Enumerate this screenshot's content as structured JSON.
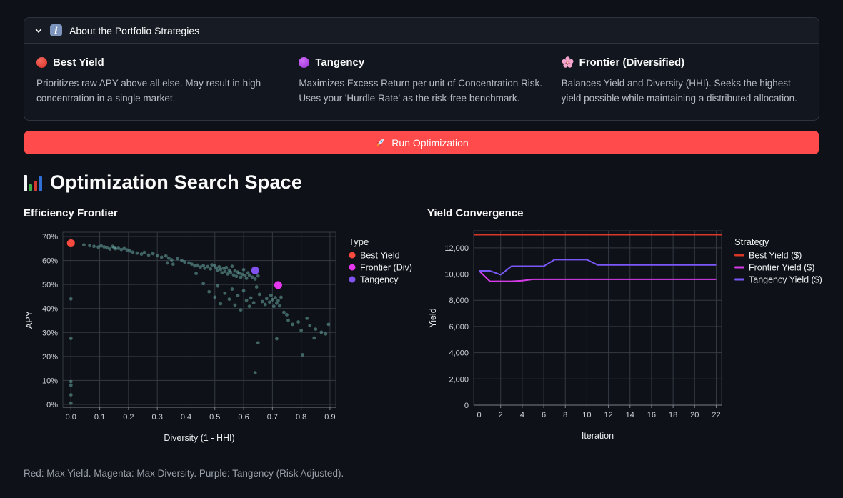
{
  "colors": {
    "page_bg": "#0e1117",
    "panel_bg": "#12161e",
    "panel_header_bg": "#171b24",
    "panel_border": "#2e333d",
    "primary_button": "#FF4B4B",
    "grid": "#343a43",
    "axis_domain": "#79808a",
    "tick_text": "#cfd3d9",
    "axis_title": "#e8eaed",
    "legend_text": "#eef0f2"
  },
  "expander": {
    "title": "About the Portfolio Strategies",
    "icon": "info-icon",
    "state_icon": "chevron-down-icon",
    "columns": [
      {
        "icon": "red-circle",
        "title": "Best Yield",
        "description": "Prioritizes raw APY above all else. May result in high concentration in a single market."
      },
      {
        "icon": "purple-circle",
        "title": "Tangency",
        "description": "Maximizes Excess Return per unit of Concentration Risk. Uses your 'Hurdle Rate' as the risk-free benchmark."
      },
      {
        "icon": "cherry-blossom",
        "title": "Frontier (Diversified)",
        "description": "Balances Yield and Diversity (HHI). Seeks the highest yield possible while maintaining a distributed allocation."
      }
    ]
  },
  "run_button": {
    "label": "Run Optimization",
    "icon": "rocket",
    "color": "#FF4B4B"
  },
  "section_title": "Optimization Search Space",
  "section_icon": "bar-chart",
  "caption": "Red: Max Yield. Magenta: Max Diversity. Purple: Tangency (Risk Adjusted).",
  "chart_data": [
    {
      "type": "scatter",
      "title": "Efficiency Frontier",
      "xlabel": "Diversity (1 - HHI)",
      "ylabel": "APY",
      "xlim": [
        -0.028,
        0.92
      ],
      "ylim": [
        -1.2,
        71.8
      ],
      "xticks": [
        0,
        0.1,
        0.2,
        0.3,
        0.4,
        0.5,
        0.6,
        0.7,
        0.8,
        0.9
      ],
      "yticks": [
        0,
        10,
        20,
        30,
        40,
        50,
        60,
        70
      ],
      "xtick_format": "fixed1",
      "ytick_format": "percent",
      "grid": true,
      "legend_title": "Type",
      "legend_position": "right",
      "legend_symbol": "circle",
      "series": [
        {
          "name": "Candidates",
          "color": "#72B7B2",
          "opacity": 0.5,
          "r": 2.4,
          "legend": false,
          "points": [
            [
              0,
              44
            ],
            [
              0,
              27.5
            ],
            [
              0,
              9.5
            ],
            [
              0,
              8
            ],
            [
              0,
              4
            ],
            [
              0,
              0.5
            ],
            [
              0.045,
              66.5
            ],
            [
              0.065,
              66.2
            ],
            [
              0.08,
              65.9
            ],
            [
              0.095,
              65.6
            ],
            [
              0.105,
              66.1
            ],
            [
              0.115,
              65.7
            ],
            [
              0.125,
              65.3
            ],
            [
              0.135,
              64.8
            ],
            [
              0.145,
              65.9
            ],
            [
              0.15,
              65.4
            ],
            [
              0.155,
              64.9
            ],
            [
              0.165,
              65.1
            ],
            [
              0.175,
              64.6
            ],
            [
              0.185,
              65
            ],
            [
              0.195,
              64.4
            ],
            [
              0.205,
              64
            ],
            [
              0.215,
              63.5
            ],
            [
              0.23,
              63.1
            ],
            [
              0.245,
              62.7
            ],
            [
              0.255,
              63.4
            ],
            [
              0.27,
              62.3
            ],
            [
              0.285,
              62.9
            ],
            [
              0.3,
              62
            ],
            [
              0.315,
              61.4
            ],
            [
              0.33,
              61.9
            ],
            [
              0.335,
              59
            ],
            [
              0.34,
              61
            ],
            [
              0.35,
              60.3
            ],
            [
              0.355,
              58.5
            ],
            [
              0.37,
              60.8
            ],
            [
              0.385,
              60.1
            ],
            [
              0.395,
              59.4
            ],
            [
              0.41,
              59
            ],
            [
              0.42,
              58.5
            ],
            [
              0.43,
              57.8
            ],
            [
              0.435,
              54.6
            ],
            [
              0.44,
              58.1
            ],
            [
              0.45,
              57.3
            ],
            [
              0.46,
              57.9
            ],
            [
              0.465,
              56.8
            ],
            [
              0.475,
              57.5
            ],
            [
              0.485,
              56.5
            ],
            [
              0.49,
              58.2
            ],
            [
              0.5,
              57.8
            ],
            [
              0.505,
              56.9
            ],
            [
              0.51,
              55.9
            ],
            [
              0.515,
              57.4
            ],
            [
              0.52,
              56.3
            ],
            [
              0.525,
              54.9
            ],
            [
              0.53,
              56.8
            ],
            [
              0.535,
              55.5
            ],
            [
              0.54,
              57.1
            ],
            [
              0.545,
              54.4
            ],
            [
              0.55,
              56
            ],
            [
              0.555,
              55.1
            ],
            [
              0.56,
              57.6
            ],
            [
              0.565,
              54
            ],
            [
              0.57,
              55.7
            ],
            [
              0.575,
              53.4
            ],
            [
              0.58,
              55.2
            ],
            [
              0.585,
              54.7
            ],
            [
              0.59,
              53
            ],
            [
              0.595,
              54.2
            ],
            [
              0.6,
              56.2
            ],
            [
              0.605,
              53.7
            ],
            [
              0.61,
              52.6
            ],
            [
              0.615,
              54.9
            ],
            [
              0.62,
              53.9
            ],
            [
              0.63,
              53.1
            ],
            [
              0.64,
              52.3
            ],
            [
              0.65,
              53.6
            ],
            [
              0.46,
              50.4
            ],
            [
              0.48,
              47
            ],
            [
              0.5,
              44.7
            ],
            [
              0.51,
              49.4
            ],
            [
              0.52,
              42
            ],
            [
              0.535,
              46.4
            ],
            [
              0.55,
              43.9
            ],
            [
              0.56,
              48.1
            ],
            [
              0.57,
              41.4
            ],
            [
              0.58,
              45.4
            ],
            [
              0.59,
              39.4
            ],
            [
              0.6,
              47.4
            ],
            [
              0.61,
              43.4
            ],
            [
              0.62,
              40.9
            ],
            [
              0.625,
              44.4
            ],
            [
              0.635,
              42.4
            ],
            [
              0.645,
              49
            ],
            [
              0.655,
              45.9
            ],
            [
              0.665,
              42.9
            ],
            [
              0.675,
              41.7
            ],
            [
              0.68,
              44.1
            ],
            [
              0.69,
              42.7
            ],
            [
              0.695,
              45.5
            ],
            [
              0.7,
              43.7
            ],
            [
              0.705,
              40.9
            ],
            [
              0.71,
              44.5
            ],
            [
              0.715,
              42.2
            ],
            [
              0.72,
              43.3
            ],
            [
              0.725,
              41.1
            ],
            [
              0.73,
              44.7
            ],
            [
              0.74,
              38.4
            ],
            [
              0.75,
              37.4
            ],
            [
              0.755,
              35.1
            ],
            [
              0.77,
              33.4
            ],
            [
              0.79,
              34.4
            ],
            [
              0.8,
              30.9
            ],
            [
              0.82,
              35.9
            ],
            [
              0.83,
              32.9
            ],
            [
              0.845,
              27.7
            ],
            [
              0.85,
              31.4
            ],
            [
              0.87,
              30.1
            ],
            [
              0.885,
              29.4
            ],
            [
              0.895,
              33.4
            ],
            [
              0.64,
              13.2
            ],
            [
              0.65,
              25.7
            ],
            [
              0.715,
              27.4
            ],
            [
              0.805,
              20.7
            ]
          ]
        },
        {
          "name": "Best Yield",
          "color": "#F94A3F",
          "opacity": 1,
          "r": 5.5,
          "legend": true,
          "points": [
            [
              0,
              67.2
            ]
          ]
        },
        {
          "name": "Frontier (Div)",
          "color": "#E636EE",
          "opacity": 1,
          "r": 5.5,
          "legend": true,
          "points": [
            [
              0.72,
              49.8
            ]
          ]
        },
        {
          "name": "Tangency",
          "color": "#8253F0",
          "opacity": 1,
          "r": 5.5,
          "legend": true,
          "points": [
            [
              0.64,
              55.9
            ]
          ]
        }
      ]
    },
    {
      "type": "line",
      "title": "Yield Convergence",
      "xlabel": "Iteration",
      "ylabel": "Yield",
      "xlim": [
        -0.5,
        22.5
      ],
      "ylim": [
        0,
        13300
      ],
      "xticks": [
        0,
        2,
        4,
        6,
        8,
        10,
        12,
        14,
        16,
        18,
        20,
        22
      ],
      "yticks": [
        0,
        2000,
        4000,
        6000,
        8000,
        10000,
        12000
      ],
      "xtick_format": "plain",
      "ytick_format": "thousands",
      "grid": true,
      "legend_title": "Strategy",
      "legend_position": "right",
      "legend_symbol": "line",
      "x": [
        0,
        1,
        2,
        3,
        4,
        5,
        6,
        7,
        8,
        9,
        10,
        11,
        12,
        13,
        14,
        15,
        16,
        17,
        18,
        19,
        20,
        21,
        22
      ],
      "series": [
        {
          "name": "Best Yield ($)",
          "color": "#D93829",
          "rule": true,
          "value": 13000
        },
        {
          "name": "Frontier Yield ($)",
          "color": "#D63BEA",
          "values": [
            10250,
            9450,
            9450,
            9450,
            9500,
            9600,
            9600,
            9600,
            9600,
            9600,
            9600,
            9600,
            9600,
            9600,
            9600,
            9600,
            9600,
            9600,
            9600,
            9600,
            9600,
            9600,
            9600
          ]
        },
        {
          "name": "Tangency Yield ($)",
          "color": "#7A57F7",
          "values": [
            10250,
            10250,
            9950,
            10600,
            10600,
            10600,
            10600,
            11100,
            11100,
            11100,
            11100,
            10700,
            10700,
            10700,
            10700,
            10700,
            10700,
            10700,
            10700,
            10700,
            10700,
            10700,
            10700
          ]
        }
      ]
    }
  ]
}
